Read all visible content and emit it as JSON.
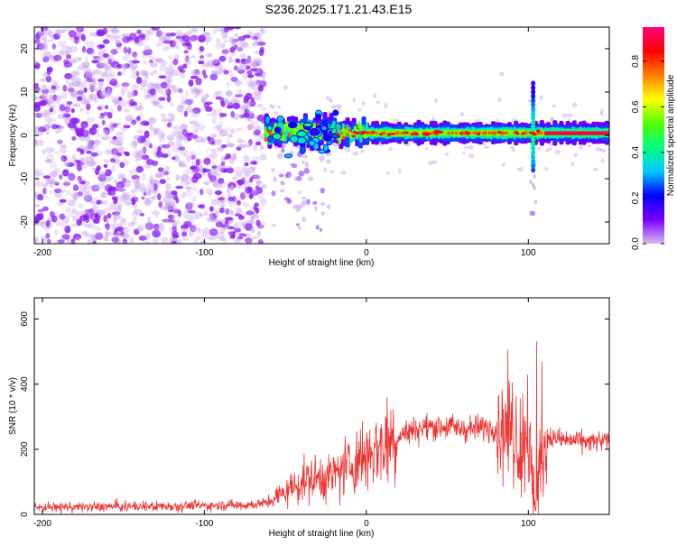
{
  "page": {
    "title": "S236.2025.171.21.43.E15"
  },
  "chart_data": [
    {
      "type": "heatmap",
      "title": "S236.2025.171.21.43.E15",
      "xlabel": "Height of straight line (km)",
      "ylabel": "Frequency (Hz)",
      "xlim": [
        -205,
        150
      ],
      "ylim": [
        -25,
        25
      ],
      "xticks": [
        -200,
        -100,
        0,
        100
      ],
      "xtick_labels": [
        "-200",
        "-100",
        "0",
        "100"
      ],
      "yticks": [
        -20,
        -10,
        0,
        10,
        20
      ],
      "ytick_labels": [
        "-20",
        "-10",
        "0",
        "10",
        "20"
      ],
      "colorbar": {
        "label": "Normalized spectral amplitude",
        "range": [
          0,
          0.95
        ],
        "ticks": [
          0.0,
          0.2,
          0.4,
          0.6,
          0.8
        ],
        "tick_labels": [
          "0.0",
          "0.2",
          "0.4",
          "0.6",
          "0.8"
        ],
        "colors": [
          "#d8b8f0",
          "#7a00ff",
          "#0000ff",
          "#00c8ff",
          "#00ff80",
          "#50ff00",
          "#ffff00",
          "#ff8000",
          "#ff0000",
          "#ff0080"
        ]
      },
      "regions": [
        {
          "x_range": [
            -205,
            -63
          ],
          "y_range": [
            -25,
            25
          ],
          "amplitude_range": [
            0.0,
            0.12
          ]
        },
        {
          "x_range": [
            -63,
            150
          ],
          "y_center": 0.5,
          "amplitude_range": [
            0.1,
            0.9
          ]
        }
      ]
    },
    {
      "type": "line",
      "xlabel": "Height of straight line (km)",
      "ylabel": "SNR (10 * v/v)",
      "xlim": [
        -205,
        150
      ],
      "ylim": [
        0,
        665
      ],
      "xticks": [
        -200,
        -100,
        0,
        100
      ],
      "xtick_labels": [
        "-200",
        "-100",
        "0",
        "100"
      ],
      "yticks": [
        0,
        200,
        400,
        600
      ],
      "ytick_labels": [
        "0",
        "200",
        "400",
        "600"
      ],
      "series": [
        {
          "color": "#ee3333",
          "x": [
            -205,
            -180,
            -150,
            -120,
            -90,
            -70,
            -62,
            -55,
            -50,
            -45,
            -40,
            -35,
            -30,
            -25,
            -20,
            -15,
            -10,
            -5,
            0,
            5,
            10,
            15,
            20,
            30,
            40,
            50,
            60,
            70,
            80,
            90,
            95,
            100,
            103,
            105,
            108,
            110,
            115,
            120,
            130,
            140,
            150
          ],
          "y": [
            22,
            23,
            24,
            26,
            28,
            30,
            35,
            55,
            70,
            85,
            100,
            110,
            110,
            115,
            120,
            140,
            150,
            170,
            185,
            200,
            215,
            230,
            245,
            260,
            270,
            270,
            262,
            265,
            268,
            270,
            210,
            240,
            80,
            200,
            90,
            240,
            235,
            230,
            225,
            222,
            225
          ]
        }
      ]
    }
  ]
}
